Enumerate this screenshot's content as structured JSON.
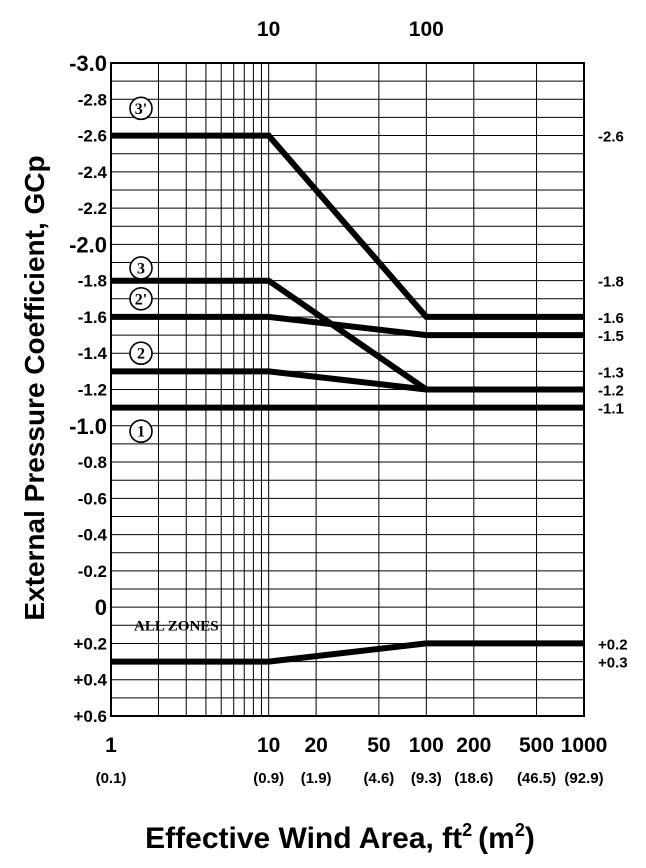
{
  "chart_data": {
    "type": "line",
    "xlabel_main": "Effective Wind Area, ft",
    "xlabel_unit_open": "(m",
    "xlabel_unit_close": ")",
    "xlabel_sup": "2",
    "ylabel": "External Pressure Coefficient, GCp",
    "x_scale": "log",
    "xlim": [
      1,
      1000
    ],
    "ylim": [
      -3.0,
      0.6
    ],
    "y_inverted": true,
    "grid": true,
    "x_ticks": [
      {
        "value": 1,
        "label": "1",
        "metric": "(0.1)"
      },
      {
        "value": 10,
        "label": "10",
        "metric": "(0.9)"
      },
      {
        "value": 20,
        "label": "20",
        "metric": "(1.9)"
      },
      {
        "value": 50,
        "label": "50",
        "metric": "(4.6)"
      },
      {
        "value": 100,
        "label": "100",
        "metric": "(9.3)"
      },
      {
        "value": 200,
        "label": "200",
        "metric": "(18.6)"
      },
      {
        "value": 500,
        "label": "500",
        "metric": "(46.5)"
      },
      {
        "value": 1000,
        "label": "1000",
        "metric": "(92.9)"
      }
    ],
    "top_ticks": [
      {
        "value": 10,
        "label": "10"
      },
      {
        "value": 100,
        "label": "100"
      }
    ],
    "y_ticks": [
      {
        "value": -3.0,
        "label": "-3.0",
        "big": true
      },
      {
        "value": -2.8,
        "label": "-2.8",
        "big": false
      },
      {
        "value": -2.6,
        "label": "-2.6",
        "big": false
      },
      {
        "value": -2.4,
        "label": "-2.4",
        "big": false
      },
      {
        "value": -2.2,
        "label": "-2.2",
        "big": false
      },
      {
        "value": -2.0,
        "label": "-2.0",
        "big": true
      },
      {
        "value": -1.8,
        "label": "-1.8",
        "big": false
      },
      {
        "value": -1.6,
        "label": "-1.6",
        "big": false
      },
      {
        "value": -1.4,
        "label": "-1.4",
        "big": false
      },
      {
        "value": -1.2,
        "label": "-1.2",
        "big": false
      },
      {
        "value": -1.0,
        "label": "-1.0",
        "big": true
      },
      {
        "value": -0.8,
        "label": "-0.8",
        "big": false
      },
      {
        "value": -0.6,
        "label": "-0.6",
        "big": false
      },
      {
        "value": -0.4,
        "label": "-0.4",
        "big": false
      },
      {
        "value": -0.2,
        "label": "-0.2",
        "big": false
      },
      {
        "value": 0.0,
        "label": "0",
        "big": true
      },
      {
        "value": 0.2,
        "label": "+0.2",
        "big": false
      },
      {
        "value": 0.4,
        "label": "+0.4",
        "big": false
      },
      {
        "value": 0.6,
        "label": "+0.6",
        "big": false
      }
    ],
    "y_minor_step": 0.1,
    "x_grid_lines": [
      2,
      3,
      4,
      5,
      6,
      7,
      8,
      9,
      10,
      20,
      50,
      100,
      200,
      500
    ],
    "series": [
      {
        "name": "3'",
        "x": [
          1,
          10,
          100,
          1000
        ],
        "y": [
          -2.6,
          -2.6,
          -1.6,
          -1.6
        ]
      },
      {
        "name": "3",
        "x": [
          1,
          10,
          100,
          1000
        ],
        "y": [
          -1.8,
          -1.8,
          -1.2,
          -1.2
        ]
      },
      {
        "name": "2'",
        "x": [
          1,
          10,
          100,
          1000
        ],
        "y": [
          -1.6,
          -1.6,
          -1.5,
          -1.5
        ]
      },
      {
        "name": "2",
        "x": [
          1,
          10,
          100,
          1000
        ],
        "y": [
          -1.3,
          -1.3,
          -1.2,
          -1.2
        ]
      },
      {
        "name": "1",
        "x": [
          1,
          1000
        ],
        "y": [
          -1.1,
          -1.1
        ]
      },
      {
        "name": "ALL ZONES",
        "x": [
          1,
          10,
          100,
          1000
        ],
        "y": [
          0.3,
          0.3,
          0.2,
          0.2
        ]
      }
    ],
    "zone_labels": [
      {
        "text": "3'",
        "x": 1.55,
        "y": -2.75
      },
      {
        "text": "3",
        "x": 1.55,
        "y": -1.87
      },
      {
        "text": "2'",
        "x": 1.55,
        "y": -1.7
      },
      {
        "text": "2",
        "x": 1.55,
        "y": -1.4
      },
      {
        "text": "1",
        "x": 1.55,
        "y": -0.97
      }
    ],
    "all_zones_label": {
      "text": "ALL ZONES",
      "x": 1.4,
      "y": 0.13
    },
    "right_labels": [
      {
        "value": -2.6,
        "label": "-2.6"
      },
      {
        "value": -1.8,
        "label": "-1.8"
      },
      {
        "value": -1.6,
        "label": "-1.6"
      },
      {
        "value": -1.5,
        "label": "-1.5"
      },
      {
        "value": -1.3,
        "label": "-1.3"
      },
      {
        "value": -1.2,
        "label": "-1.2"
      },
      {
        "value": -1.1,
        "label": "-1.1"
      },
      {
        "value": 0.2,
        "label": "+0.2"
      },
      {
        "value": 0.3,
        "label": "+0.3"
      }
    ]
  }
}
